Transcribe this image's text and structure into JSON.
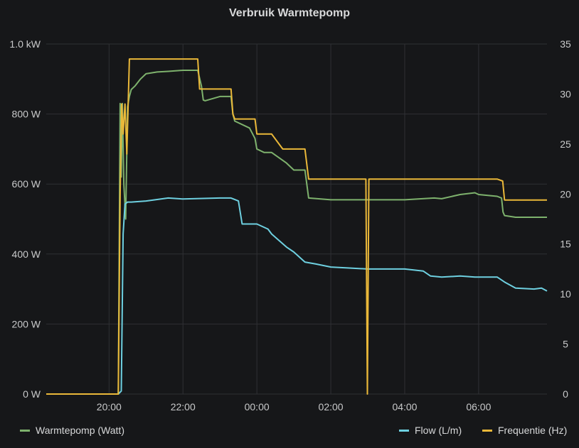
{
  "panel": {
    "title": "Verbruik Warmtepomp"
  },
  "colors": {
    "background": "#161719",
    "grid": "#2f3034",
    "power": "#7eb26d",
    "flow": "#6ed0e0",
    "frequency": "#eab839"
  },
  "legend": {
    "power": "Warmtepomp (Watt)",
    "flow": "Flow (L/m)",
    "frequency": "Frequentie (Hz)"
  },
  "chart_data": {
    "type": "line",
    "title": "Verbruik Warmtepomp",
    "x_range_hours": [
      18.3,
      31.85
    ],
    "x_ticks": [
      {
        "h": 20,
        "label": "20:00"
      },
      {
        "h": 22,
        "label": "22:00"
      },
      {
        "h": 24,
        "label": "00:00"
      },
      {
        "h": 26,
        "label": "02:00"
      },
      {
        "h": 28,
        "label": "04:00"
      },
      {
        "h": 30,
        "label": "06:00"
      }
    ],
    "y_left": {
      "unit": "W",
      "range": [
        0,
        1000
      ],
      "ticks": [
        {
          "v": 0,
          "label": "0 W"
        },
        {
          "v": 200,
          "label": "200 W"
        },
        {
          "v": 400,
          "label": "400 W"
        },
        {
          "v": 600,
          "label": "600 W"
        },
        {
          "v": 800,
          "label": "800 W"
        },
        {
          "v": 1000,
          "label": "1.0 kW"
        }
      ]
    },
    "y_right": {
      "range": [
        0,
        35
      ],
      "ticks": [
        {
          "v": 0,
          "label": "0"
        },
        {
          "v": 5,
          "label": "5"
        },
        {
          "v": 10,
          "label": "10"
        },
        {
          "v": 15,
          "label": "15"
        },
        {
          "v": 20,
          "label": "20"
        },
        {
          "v": 25,
          "label": "25"
        },
        {
          "v": 30,
          "label": "30"
        },
        {
          "v": 35,
          "label": "35"
        }
      ]
    },
    "grid": true,
    "legend_placement": "bottom",
    "series": [
      {
        "name": "Warmtepomp (Watt)",
        "axis": "left",
        "x": [
          18.3,
          20.25,
          20.3,
          20.33,
          20.36,
          20.4,
          20.45,
          20.5,
          20.55,
          20.6,
          20.7,
          20.85,
          21.0,
          21.3,
          21.6,
          22.0,
          22.4,
          22.5,
          22.55,
          22.6,
          23.0,
          23.3,
          23.35,
          23.4,
          23.8,
          23.95,
          24.0,
          24.2,
          24.4,
          24.8,
          25.0,
          25.3,
          25.4,
          26.0,
          27.0,
          28.0,
          28.8,
          29.0,
          29.5,
          29.9,
          30.0,
          30.5,
          30.62,
          30.66,
          30.7,
          31.0,
          31.5,
          31.85
        ],
        "values": [
          0,
          0,
          830,
          620,
          830,
          600,
          500,
          820,
          850,
          870,
          880,
          900,
          915,
          920,
          922,
          925,
          925,
          880,
          840,
          838,
          850,
          850,
          800,
          780,
          760,
          730,
          700,
          690,
          690,
          660,
          640,
          640,
          560,
          555,
          555,
          555,
          560,
          558,
          570,
          575,
          570,
          565,
          560,
          520,
          510,
          505,
          505,
          505
        ]
      },
      {
        "name": "Flow (L/m)",
        "axis": "right",
        "x": [
          18.3,
          20.25,
          20.33,
          20.38,
          20.43,
          20.5,
          20.6,
          21.0,
          21.6,
          22.0,
          23.0,
          23.3,
          23.5,
          23.6,
          24.0,
          24.3,
          24.4,
          24.8,
          25.0,
          25.3,
          25.6,
          26.0,
          26.5,
          27.0,
          28.0,
          28.5,
          28.7,
          29.0,
          29.5,
          29.9,
          30.5,
          30.7,
          31.0,
          31.5,
          31.7,
          31.85
        ],
        "values": [
          0,
          0,
          0.3,
          16,
          19,
          19.2,
          19.2,
          19.3,
          19.6,
          19.5,
          19.6,
          19.6,
          19.3,
          17,
          17,
          16.5,
          16,
          14.7,
          14.2,
          13.2,
          13.0,
          12.7,
          12.6,
          12.5,
          12.5,
          12.3,
          11.8,
          11.7,
          11.8,
          11.7,
          11.7,
          11.2,
          10.6,
          10.5,
          10.6,
          10.3
        ]
      },
      {
        "name": "Frequentie (Hz)",
        "axis": "right",
        "x": [
          18.3,
          20.25,
          20.3,
          20.34,
          20.38,
          20.43,
          20.48,
          20.55,
          20.6,
          21.0,
          22.0,
          22.4,
          22.45,
          22.5,
          23.0,
          23.3,
          23.35,
          23.4,
          23.8,
          23.95,
          24.0,
          24.2,
          24.4,
          24.7,
          24.8,
          25.0,
          25.3,
          25.4,
          26.0,
          26.5,
          26.95,
          26.99,
          27.03,
          27.07,
          27.5,
          28.0,
          29.0,
          30.0,
          30.5,
          30.65,
          30.7,
          31.0,
          31.5,
          31.85
        ],
        "values": [
          0,
          0,
          20,
          29,
          26,
          29,
          24,
          33.5,
          33.5,
          33.5,
          33.5,
          33.5,
          30.5,
          30.5,
          30.5,
          30.5,
          28,
          27.5,
          27.5,
          27.5,
          26,
          26,
          26,
          24.5,
          24.5,
          24.5,
          24.5,
          21.5,
          21.5,
          21.5,
          21.5,
          0,
          21.5,
          21.5,
          21.5,
          21.5,
          21.5,
          21.5,
          21.5,
          21.3,
          19.4,
          19.4,
          19.4,
          19.4
        ]
      }
    ]
  }
}
